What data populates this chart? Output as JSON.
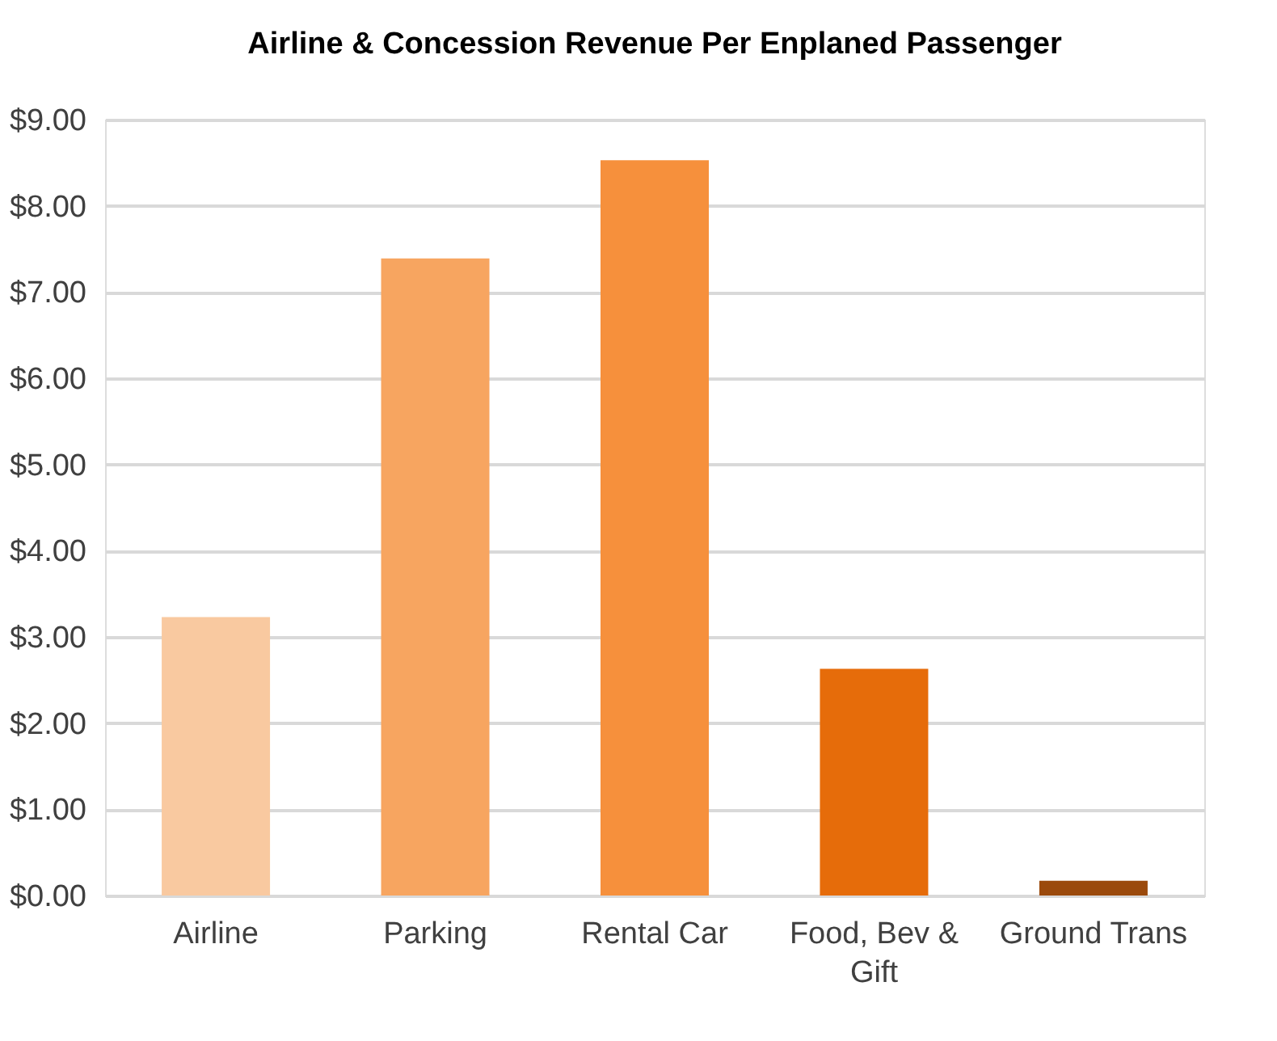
{
  "chart_data": {
    "type": "bar",
    "title": "Airline & Concession Revenue Per Enplaned Passenger",
    "categories": [
      "Airline",
      "Parking",
      "Rental Car",
      "Food, Bev & Gift",
      "Ground Trans"
    ],
    "values": [
      3.23,
      7.39,
      8.53,
      2.63,
      0.17
    ],
    "colors": [
      "#f9c9a0",
      "#f7a560",
      "#f6903c",
      "#e66c0a",
      "#9b4a0c"
    ],
    "ylim": [
      0,
      9
    ],
    "yticks": [
      {
        "value": 0,
        "label": "$0.00"
      },
      {
        "value": 1,
        "label": "$1.00"
      },
      {
        "value": 2,
        "label": "$2.00"
      },
      {
        "value": 3,
        "label": "$3.00"
      },
      {
        "value": 4,
        "label": "$4.00"
      },
      {
        "value": 5,
        "label": "$5.00"
      },
      {
        "value": 6,
        "label": "$6.00"
      },
      {
        "value": 7,
        "label": "$7.00"
      },
      {
        "value": 8,
        "label": "$8.00"
      },
      {
        "value": 9,
        "label": "$9.00"
      }
    ],
    "grid": "y",
    "legend": false
  }
}
